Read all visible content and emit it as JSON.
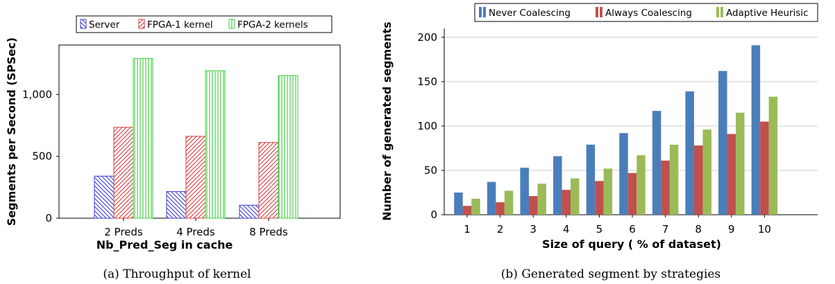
{
  "chart_data": [
    {
      "type": "bar",
      "caption": "(a) Throughput of kernel",
      "xlabel": "Nb_Pred_Seg in cache",
      "ylabel": "Segments per Second (SPSec)",
      "categories": [
        "2 Preds",
        "4 Preds",
        "8 Preds"
      ],
      "ylim": [
        0,
        1400
      ],
      "yticks": [
        0,
        500,
        1000
      ],
      "ytick_labels": [
        "0",
        "500",
        "1,000"
      ],
      "grid": false,
      "legend_position": "top",
      "series": [
        {
          "name": "Server",
          "values": [
            340,
            215,
            105
          ],
          "color": "#3b3bd0",
          "pattern": "diagonal-down"
        },
        {
          "name": "FPGA-1 kernel",
          "values": [
            735,
            662,
            612
          ],
          "color": "#d83b3b",
          "pattern": "diagonal-up"
        },
        {
          "name": "FPGA-2 kernels",
          "values": [
            1292,
            1192,
            1153
          ],
          "color": "#3ccc3c",
          "pattern": "vertical"
        }
      ]
    },
    {
      "type": "bar",
      "caption": "(b) Generated segment by strategies",
      "xlabel": "Size of query ( % of dataset)",
      "ylabel": "Number of generated segments",
      "categories": [
        "1",
        "2",
        "3",
        "4",
        "5",
        "6",
        "7",
        "8",
        "9",
        "10"
      ],
      "ylim": [
        0,
        210
      ],
      "yticks": [
        0,
        50,
        100,
        150,
        200
      ],
      "ytick_labels": [
        "0",
        "50",
        "100",
        "150",
        "200"
      ],
      "grid": true,
      "legend_position": "top",
      "series": [
        {
          "name": "Never Coalescing",
          "values": [
            25,
            37,
            53,
            66,
            79,
            92,
            117,
            139,
            162,
            191
          ],
          "color": "#4a7ebb"
        },
        {
          "name": "Always Coalescing",
          "values": [
            10,
            14,
            21,
            28,
            38,
            47,
            61,
            78,
            91,
            105
          ],
          "color": "#c0504d"
        },
        {
          "name": "Adaptive Heurisic",
          "values": [
            18,
            27,
            35,
            41,
            52,
            67,
            79,
            96,
            115,
            133
          ],
          "color": "#9bbb59"
        }
      ]
    }
  ]
}
